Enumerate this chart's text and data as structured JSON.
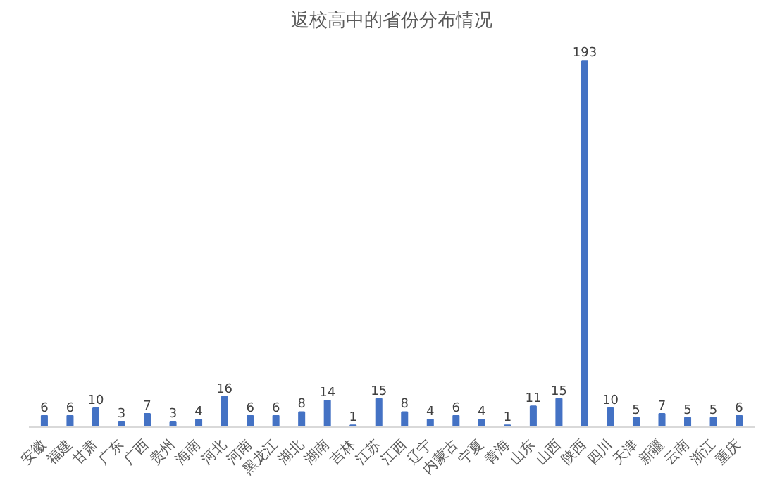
{
  "chart_data": {
    "type": "bar",
    "title": "返校高中的省份分布情况",
    "categories": [
      "安徽",
      "福建",
      "甘肃",
      "广东",
      "广西",
      "贵州",
      "海南",
      "河北",
      "河南",
      "黑龙江",
      "湖北",
      "湖南",
      "吉林",
      "江苏",
      "江西",
      "辽宁",
      "内蒙古",
      "宁夏",
      "青海",
      "山东",
      "山西",
      "陕西",
      "四川",
      "天津",
      "新疆",
      "云南",
      "浙江",
      "重庆"
    ],
    "values": [
      6,
      6,
      10,
      3,
      7,
      3,
      4,
      16,
      6,
      6,
      8,
      14,
      1,
      15,
      8,
      4,
      6,
      4,
      1,
      11,
      15,
      193,
      10,
      5,
      7,
      5,
      5,
      6
    ],
    "color": "#4472c4",
    "data_labels": true,
    "grid": false
  }
}
